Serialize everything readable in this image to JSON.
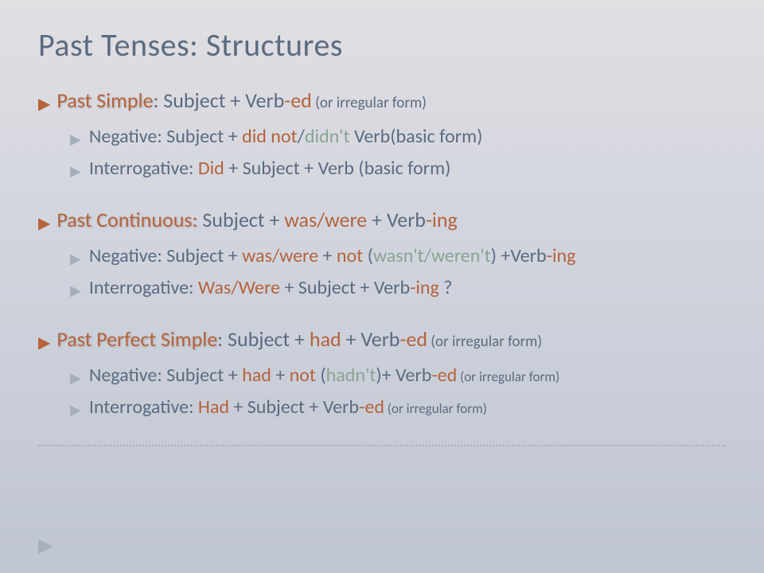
{
  "colors": {
    "title": "#5b6b80",
    "body": "#5b6b80",
    "accent": "#b5633b",
    "contraction": "#8aa293",
    "sub_bullet": "#a6aebb",
    "bg_start": "#e1dfe2",
    "bg_end": "#bfc5d1",
    "divider": "#a8afbc"
  },
  "typography": {
    "title_size": 40,
    "level1_size": 26,
    "level2_size": 24,
    "irreg_size": 19
  },
  "title": "Past Tenses: Structures",
  "sections": [
    {
      "name": "Past Simple",
      "main_prefix": ":  Subject + Verb",
      "main_suffix": "-ed",
      "main_irreg": " (or irregular form)",
      "neg_label": "Negative:  Subject + ",
      "neg_aux1": "did not",
      "neg_slash": "/",
      "neg_contr": "didn't",
      "neg_rest": " Verb(basic form)",
      "int_label": "Interrogative:  ",
      "int_aux": "Did",
      "int_rest": " + Subject + Verb (basic form)"
    },
    {
      "name": "Past Continuous:",
      "main_prefix": " Subject + ",
      "main_aux": "was/were",
      "main_mid": " + Verb",
      "main_suffix": "-ing",
      "neg_label": "Negative:  Subject + ",
      "neg_aux": "was/were",
      "neg_mid": " + ",
      "neg_not": "not",
      "neg_open": " (",
      "neg_contr": "wasn't/weren't",
      "neg_close": ") +Verb",
      "neg_suffix": "-ing",
      "int_label": "Interrogative: ",
      "int_aux": "Was/Were",
      "int_mid": " + Subject + Verb",
      "int_suffix": "-ing",
      "int_q": " ?"
    },
    {
      "name": "Past Perfect Simple",
      "main_prefix": ":  Subject + ",
      "main_aux": "had",
      "main_mid": " + Verb",
      "main_suffix": "-ed",
      "main_irreg": " (or irregular form)",
      "neg_label": "Negative: Subject  +  ",
      "neg_aux": "had",
      "neg_mid": " + ",
      "neg_not": "not",
      "neg_open": "  (",
      "neg_contr": "hadn't",
      "neg_close": ")+ Verb",
      "neg_suffix": "-ed",
      "neg_irreg": " (or irregular form)",
      "int_label": "Interrogative:  ",
      "int_aux": "Had",
      "int_mid": " + Subject + Verb",
      "int_suffix": "-ed",
      "int_irreg": " (or irregular form)"
    }
  ]
}
